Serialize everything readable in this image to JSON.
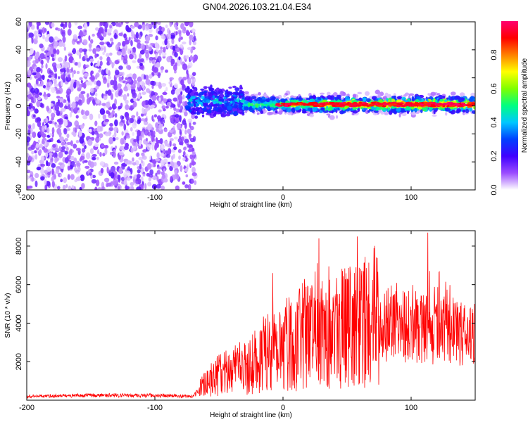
{
  "figure": {
    "title": "GN04.2026.103.21.04.E34"
  },
  "chart_data": [
    {
      "type": "heatmap",
      "xlabel": "Height of straight line (km)",
      "ylabel": "Frequency (Hz)",
      "xlim": [
        -200,
        150
      ],
      "ylim": [
        -60,
        60
      ],
      "x_ticks": [
        -200,
        -100,
        0,
        100
      ],
      "y_ticks": [
        -60,
        -40,
        -20,
        0,
        20,
        40,
        60
      ],
      "grid": false,
      "regions": [
        {
          "x_from": -200,
          "x_to": -68,
          "description": "broadband noise, low amplitude spread over all frequencies"
        },
        {
          "x_from": -75,
          "x_to": -30,
          "center_hz": 3,
          "half_width_hz": 10,
          "description": "band onset, broad"
        },
        {
          "x_from": -30,
          "x_to": 150,
          "center_hz": 1,
          "half_width_hz": 5,
          "description": "narrow band near 0 Hz, peak amplitude 0.9 to 1.0"
        }
      ],
      "colorbar": {
        "label": "Normalized spectral amplitude",
        "range": [
          0,
          1
        ],
        "ticks": [
          0.0,
          0.2,
          0.4,
          0.6,
          0.8
        ],
        "tick_labels": [
          "0.0",
          "0.2",
          "0.4",
          "0.6",
          "0.8"
        ],
        "colormap": [
          "#ffffff",
          "#9b4dff",
          "#4000ff",
          "#0040ff",
          "#00c8ff",
          "#00ff80",
          "#80ff00",
          "#ffff00",
          "#ff8000",
          "#ff0000",
          "#ff0070"
        ]
      }
    },
    {
      "type": "line",
      "xlabel": "Height of straight line (km)",
      "ylabel": "SNR (10 * v/v)",
      "xlim": [
        -200,
        150
      ],
      "ylim": [
        0,
        8800
      ],
      "x_ticks": [
        -200,
        -100,
        0,
        100
      ],
      "y_ticks": [
        2000,
        4000,
        6000,
        8000
      ],
      "grid": false,
      "line_color": "#ff0000",
      "series": [
        {
          "x": [
            -200,
            -150,
            -100,
            -70,
            -60,
            -50,
            -40,
            -30,
            -20,
            -10,
            0,
            10,
            20,
            30,
            40,
            50,
            60,
            70,
            80,
            90,
            100,
            110,
            120,
            130,
            140,
            150
          ],
          "values": [
            200,
            250,
            250,
            200,
            900,
            1300,
            1500,
            1700,
            2000,
            2800,
            3000,
            3000,
            3600,
            4000,
            3800,
            3800,
            3900,
            4300,
            4000,
            4000,
            3800,
            3800,
            3600,
            3500,
            3400,
            3400
          ]
        }
      ],
      "peaks": [
        {
          "x": -8,
          "y": 6600
        },
        {
          "x": 28,
          "y": 8400
        },
        {
          "x": 58,
          "y": 8500
        },
        {
          "x": 113,
          "y": 8700
        }
      ]
    }
  ]
}
